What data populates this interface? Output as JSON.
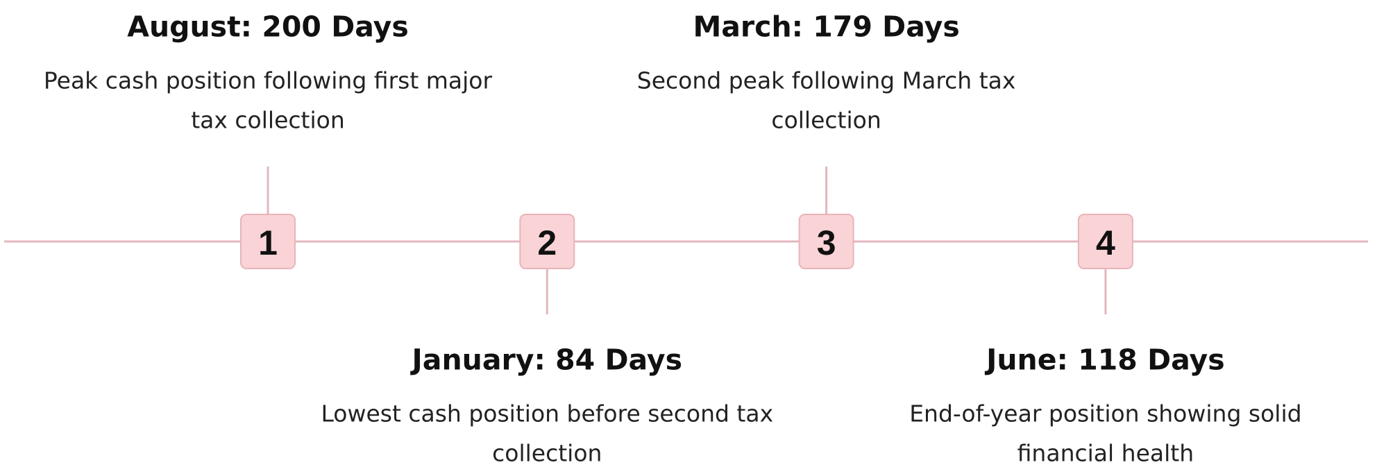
{
  "timeline": {
    "items": [
      {
        "number": 1,
        "title": "August: 200 Days",
        "description": [
          "Peak cash position following first major",
          "tax collection"
        ],
        "side": "top"
      },
      {
        "number": 2,
        "title": "January: 84 Days",
        "description": [
          "Lowest cash position before second tax",
          "collection"
        ],
        "side": "bottom"
      },
      {
        "number": 3,
        "title": "March: 179 Days",
        "description": [
          "Second peak following March tax",
          "collection"
        ],
        "side": "top"
      },
      {
        "number": 4,
        "title": "June: 118 Days",
        "description": [
          "End-of-year position showing solid",
          "financial health"
        ],
        "side": "bottom"
      }
    ]
  }
}
